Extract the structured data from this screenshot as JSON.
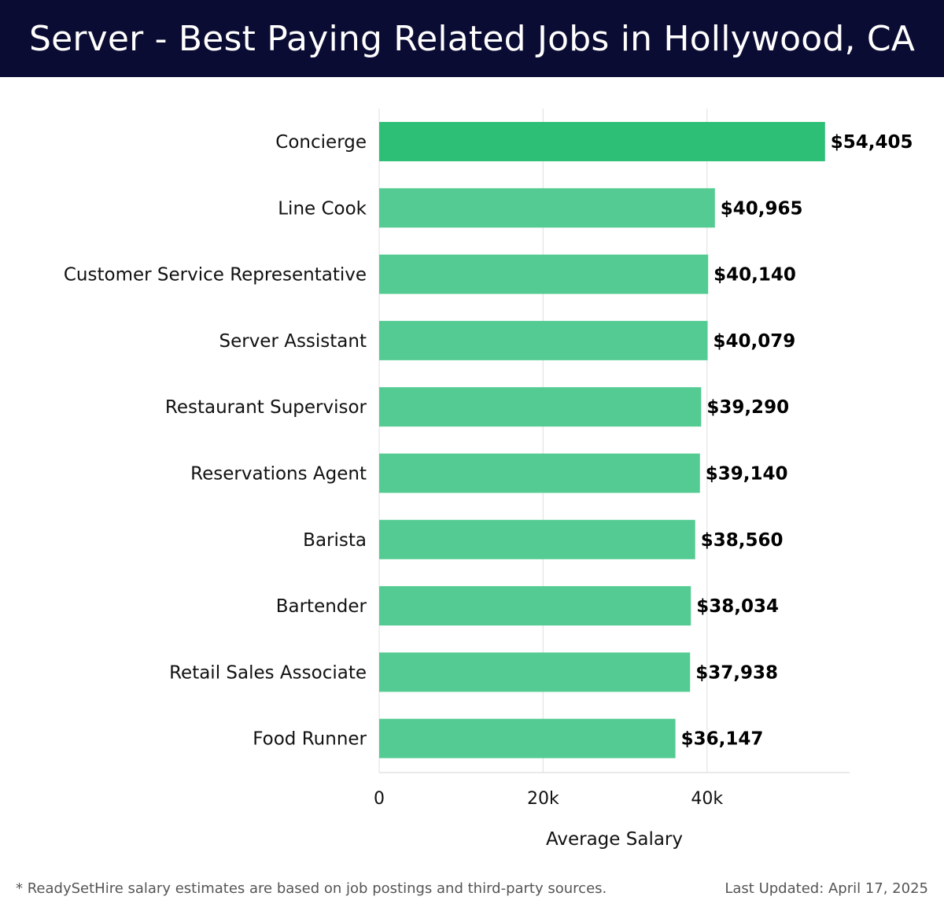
{
  "header": {
    "title": "Server - Best Paying Related Jobs in Hollywood, CA"
  },
  "chart_data": {
    "type": "bar",
    "orientation": "horizontal",
    "categories": [
      "Concierge",
      "Line Cook",
      "Customer Service Representative",
      "Server Assistant",
      "Restaurant Supervisor",
      "Reservations Agent",
      "Barista",
      "Bartender",
      "Retail Sales Associate",
      "Food Runner"
    ],
    "values": [
      54405,
      40965,
      40140,
      40079,
      39290,
      39140,
      38560,
      38034,
      37938,
      36147
    ],
    "value_labels": [
      "$54,405",
      "$40,965",
      "$40,140",
      "$40,079",
      "$39,290",
      "$39,140",
      "$38,560",
      "$38,034",
      "$37,938",
      "$36,147"
    ],
    "xlabel": "Average Salary",
    "xticks": [
      0,
      20000,
      40000
    ],
    "xtick_labels": [
      "0",
      "20k",
      "40k"
    ],
    "xlim": [
      0,
      57400
    ],
    "grid": true,
    "colors": {
      "highlight": "#2ebf77",
      "bar": "#54cb92"
    }
  },
  "footer": {
    "note": "* ReadySetHire salary estimates are based on job postings and third-party sources.",
    "updated": "Last Updated: April 17, 2025"
  }
}
